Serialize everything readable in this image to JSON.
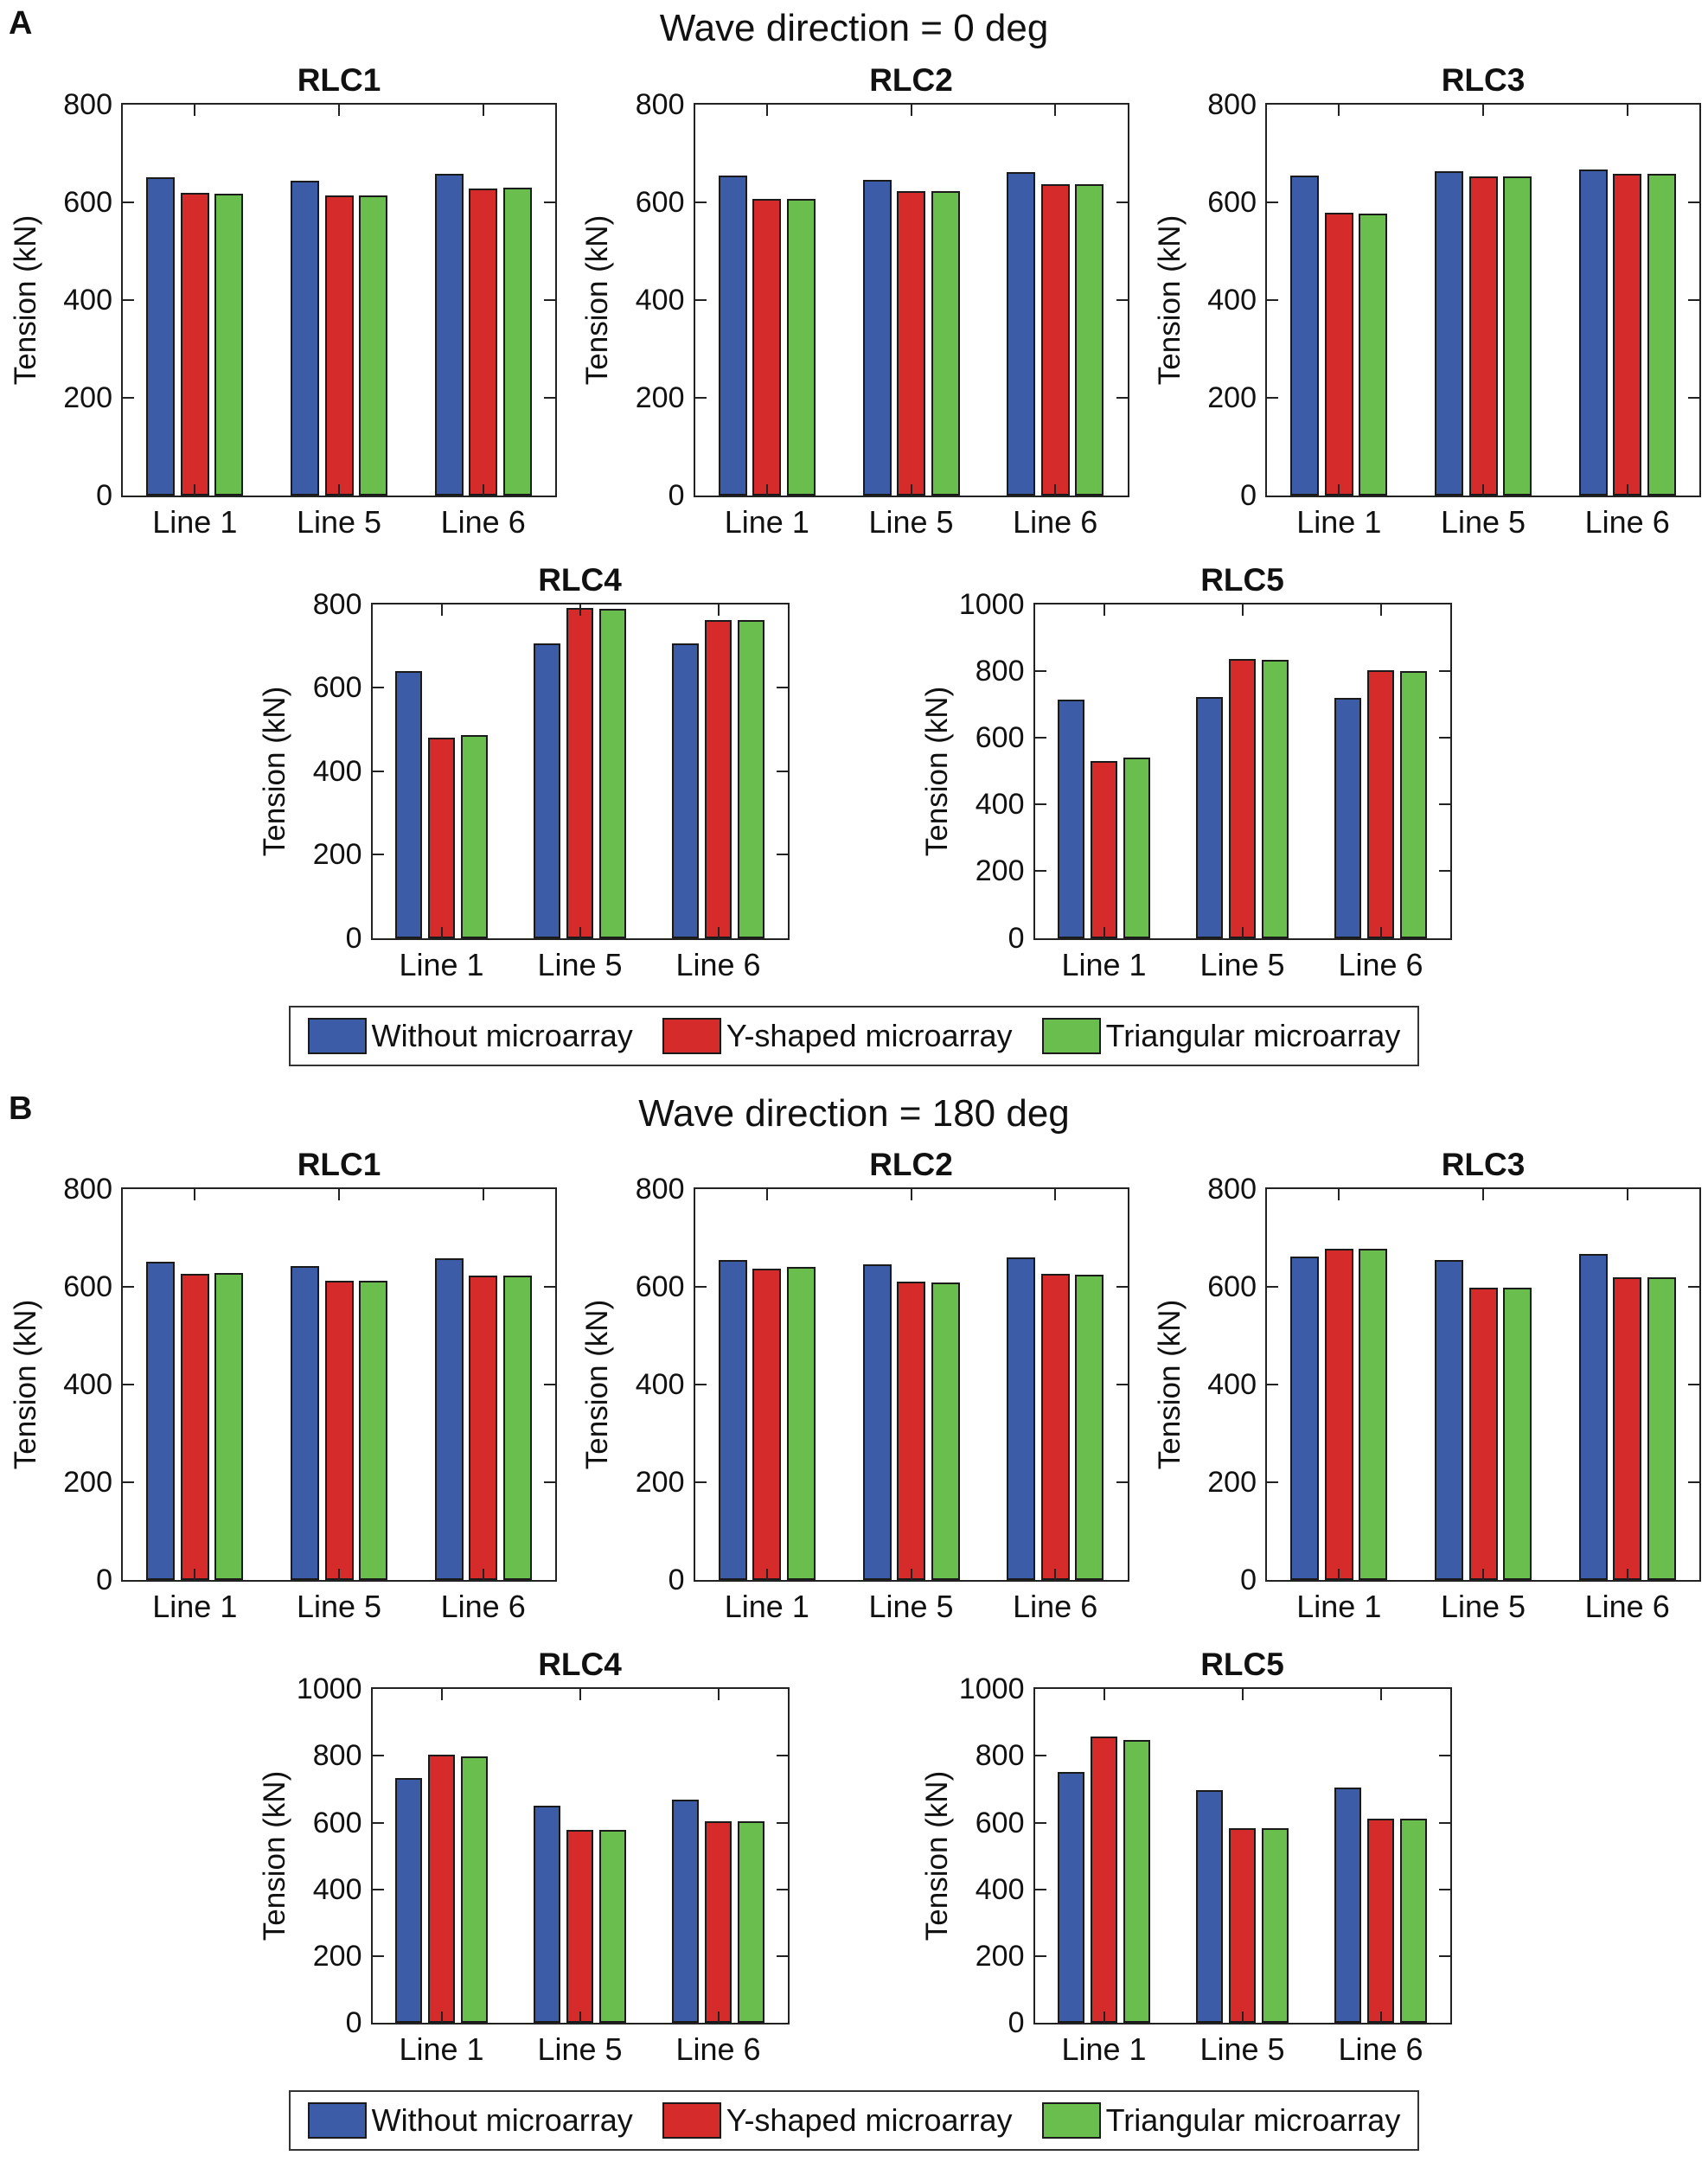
{
  "figure": {
    "ylabel": "Tension (kN)",
    "legend": [
      {
        "label": "Without microarray",
        "color": "#3d5ca8"
      },
      {
        "label": "Y-shaped microarray",
        "color": "#d62b2b"
      },
      {
        "label": "Triangular microarray",
        "color": "#69be4e"
      }
    ],
    "axis_color": "#222222",
    "bar_edge_color": "#1a1a1a"
  },
  "panels": [
    {
      "label": "A",
      "title": "Wave direction = 0 deg"
    },
    {
      "label": "B",
      "title": "Wave direction = 180 deg"
    }
  ],
  "chart_data": [
    {
      "panel": "A",
      "row": 1,
      "type": "bar",
      "title": "RLC1",
      "xlabel": "",
      "ylabel": "Tension (kN)",
      "ylim": [
        0,
        800
      ],
      "yticks": [
        0,
        200,
        400,
        600,
        800
      ],
      "categories": [
        "Line 1",
        "Line 5",
        "Line 6"
      ],
      "series": [
        {
          "name": "Without microarray",
          "values": [
            650,
            643,
            658
          ]
        },
        {
          "name": "Y-shaped microarray",
          "values": [
            618,
            614,
            628
          ]
        },
        {
          "name": "Triangular microarray",
          "values": [
            617,
            614,
            629
          ]
        }
      ]
    },
    {
      "panel": "A",
      "row": 1,
      "type": "bar",
      "title": "RLC2",
      "xlabel": "",
      "ylabel": "Tension (kN)",
      "ylim": [
        0,
        800
      ],
      "yticks": [
        0,
        200,
        400,
        600,
        800
      ],
      "categories": [
        "Line 1",
        "Line 5",
        "Line 6"
      ],
      "series": [
        {
          "name": "Without microarray",
          "values": [
            655,
            646,
            661
          ]
        },
        {
          "name": "Y-shaped microarray",
          "values": [
            607,
            623,
            637
          ]
        },
        {
          "name": "Triangular microarray",
          "values": [
            607,
            623,
            637
          ]
        }
      ]
    },
    {
      "panel": "A",
      "row": 1,
      "type": "bar",
      "title": "RLC3",
      "xlabel": "",
      "ylabel": "Tension (kN)",
      "ylim": [
        0,
        800
      ],
      "yticks": [
        0,
        200,
        400,
        600,
        800
      ],
      "categories": [
        "Line 1",
        "Line 5",
        "Line 6"
      ],
      "series": [
        {
          "name": "Without microarray",
          "values": [
            655,
            663,
            667
          ]
        },
        {
          "name": "Y-shaped microarray",
          "values": [
            578,
            653,
            657
          ]
        },
        {
          "name": "Triangular microarray",
          "values": [
            577,
            653,
            657
          ]
        }
      ]
    },
    {
      "panel": "A",
      "row": 2,
      "type": "bar",
      "title": "RLC4",
      "xlabel": "",
      "ylabel": "Tension (kN)",
      "ylim": [
        0,
        800
      ],
      "yticks": [
        0,
        200,
        400,
        600,
        800
      ],
      "categories": [
        "Line 1",
        "Line 5",
        "Line 6"
      ],
      "series": [
        {
          "name": "Without microarray",
          "values": [
            640,
            705,
            705
          ]
        },
        {
          "name": "Y-shaped microarray",
          "values": [
            480,
            790,
            763
          ]
        },
        {
          "name": "Triangular microarray",
          "values": [
            487,
            788,
            762
          ]
        }
      ]
    },
    {
      "panel": "A",
      "row": 2,
      "type": "bar",
      "title": "RLC5",
      "xlabel": "",
      "ylabel": "Tension (kN)",
      "ylim": [
        0,
        1000
      ],
      "yticks": [
        0,
        200,
        400,
        600,
        800,
        1000
      ],
      "categories": [
        "Line 1",
        "Line 5",
        "Line 6"
      ],
      "series": [
        {
          "name": "Without microarray",
          "values": [
            715,
            722,
            720
          ]
        },
        {
          "name": "Y-shaped microarray",
          "values": [
            530,
            835,
            803
          ]
        },
        {
          "name": "Triangular microarray",
          "values": [
            540,
            832,
            800
          ]
        }
      ]
    },
    {
      "panel": "B",
      "row": 1,
      "type": "bar",
      "title": "RLC1",
      "xlabel": "",
      "ylabel": "Tension (kN)",
      "ylim": [
        0,
        800
      ],
      "yticks": [
        0,
        200,
        400,
        600,
        800
      ],
      "categories": [
        "Line 1",
        "Line 5",
        "Line 6"
      ],
      "series": [
        {
          "name": "Without microarray",
          "values": [
            651,
            643,
            659
          ]
        },
        {
          "name": "Y-shaped microarray",
          "values": [
            627,
            612,
            623
          ]
        },
        {
          "name": "Triangular microarray",
          "values": [
            628,
            612,
            623
          ]
        }
      ]
    },
    {
      "panel": "B",
      "row": 1,
      "type": "bar",
      "title": "RLC2",
      "xlabel": "",
      "ylabel": "Tension (kN)",
      "ylim": [
        0,
        800
      ],
      "yticks": [
        0,
        200,
        400,
        600,
        800
      ],
      "categories": [
        "Line 1",
        "Line 5",
        "Line 6"
      ],
      "series": [
        {
          "name": "Without microarray",
          "values": [
            655,
            646,
            661
          ]
        },
        {
          "name": "Y-shaped microarray",
          "values": [
            638,
            611,
            627
          ]
        },
        {
          "name": "Triangular microarray",
          "values": [
            641,
            609,
            626
          ]
        }
      ]
    },
    {
      "panel": "B",
      "row": 1,
      "type": "bar",
      "title": "RLC3",
      "xlabel": "",
      "ylabel": "Tension (kN)",
      "ylim": [
        0,
        800
      ],
      "yticks": [
        0,
        200,
        400,
        600,
        800
      ],
      "categories": [
        "Line 1",
        "Line 5",
        "Line 6"
      ],
      "series": [
        {
          "name": "Without microarray",
          "values": [
            662,
            655,
            668
          ]
        },
        {
          "name": "Y-shaped microarray",
          "values": [
            678,
            598,
            620
          ]
        },
        {
          "name": "Triangular microarray",
          "values": [
            678,
            599,
            620
          ]
        }
      ]
    },
    {
      "panel": "B",
      "row": 2,
      "type": "bar",
      "title": "RLC4",
      "xlabel": "",
      "ylabel": "Tension (kN)",
      "ylim": [
        0,
        1000
      ],
      "yticks": [
        0,
        200,
        400,
        600,
        800,
        1000
      ],
      "categories": [
        "Line 1",
        "Line 5",
        "Line 6"
      ],
      "series": [
        {
          "name": "Without microarray",
          "values": [
            733,
            652,
            668
          ]
        },
        {
          "name": "Y-shaped microarray",
          "values": [
            805,
            578,
            603
          ]
        },
        {
          "name": "Triangular microarray",
          "values": [
            798,
            579,
            605
          ]
        }
      ]
    },
    {
      "panel": "B",
      "row": 2,
      "type": "bar",
      "title": "RLC5",
      "xlabel": "",
      "ylabel": "Tension (kN)",
      "ylim": [
        0,
        1000
      ],
      "yticks": [
        0,
        200,
        400,
        600,
        800,
        1000
      ],
      "categories": [
        "Line 1",
        "Line 5",
        "Line 6"
      ],
      "series": [
        {
          "name": "Without microarray",
          "values": [
            753,
            698,
            705
          ]
        },
        {
          "name": "Y-shaped microarray",
          "values": [
            858,
            583,
            612
          ]
        },
        {
          "name": "Triangular microarray",
          "values": [
            849,
            584,
            613
          ]
        }
      ]
    }
  ]
}
